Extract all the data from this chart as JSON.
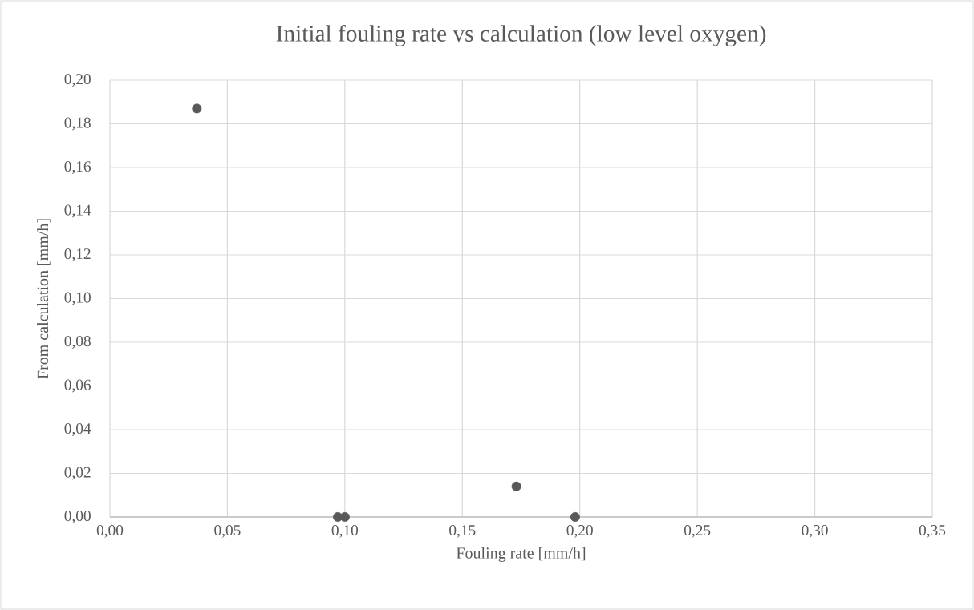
{
  "chart_data": {
    "type": "scatter",
    "title": "Initial fouling rate vs calculation (low level oxygen)",
    "xlabel": "Fouling rate [mm/h]",
    "ylabel": "From calculation [mm/h]",
    "series": [
      {
        "color": "#595959",
        "x": [
          0.037,
          0.097,
          0.1,
          0.173,
          0.198
        ],
        "values": [
          0.187,
          0.0,
          0.0,
          0.014,
          0.0
        ]
      }
    ],
    "xlim": [
      0,
      0.35
    ],
    "ylim": [
      0,
      0.2
    ],
    "xticks": [
      {
        "value": 0,
        "label": "0,00"
      },
      {
        "value": 0.05,
        "label": "0,05"
      },
      {
        "value": 0.1,
        "label": "0,10"
      },
      {
        "value": 0.15,
        "label": "0,15"
      },
      {
        "value": 0.2,
        "label": "0,20"
      },
      {
        "value": 0.25,
        "label": "0,25"
      },
      {
        "value": 0.3,
        "label": "0,30"
      },
      {
        "value": 0.35,
        "label": "0,35"
      }
    ],
    "yticks": [
      {
        "value": 0,
        "label": "0,00"
      },
      {
        "value": 0.02,
        "label": "0,02"
      },
      {
        "value": 0.04,
        "label": "0,04"
      },
      {
        "value": 0.06,
        "label": "0,06"
      },
      {
        "value": 0.08,
        "label": "0,08"
      },
      {
        "value": 0.1,
        "label": "0,10"
      },
      {
        "value": 0.12,
        "label": "0,12"
      },
      {
        "value": 0.14,
        "label": "0,14"
      },
      {
        "value": 0.16,
        "label": "0,16"
      },
      {
        "value": 0.18,
        "label": "0,18"
      },
      {
        "value": 0.2,
        "label": "0,20"
      }
    ],
    "grid": true
  }
}
